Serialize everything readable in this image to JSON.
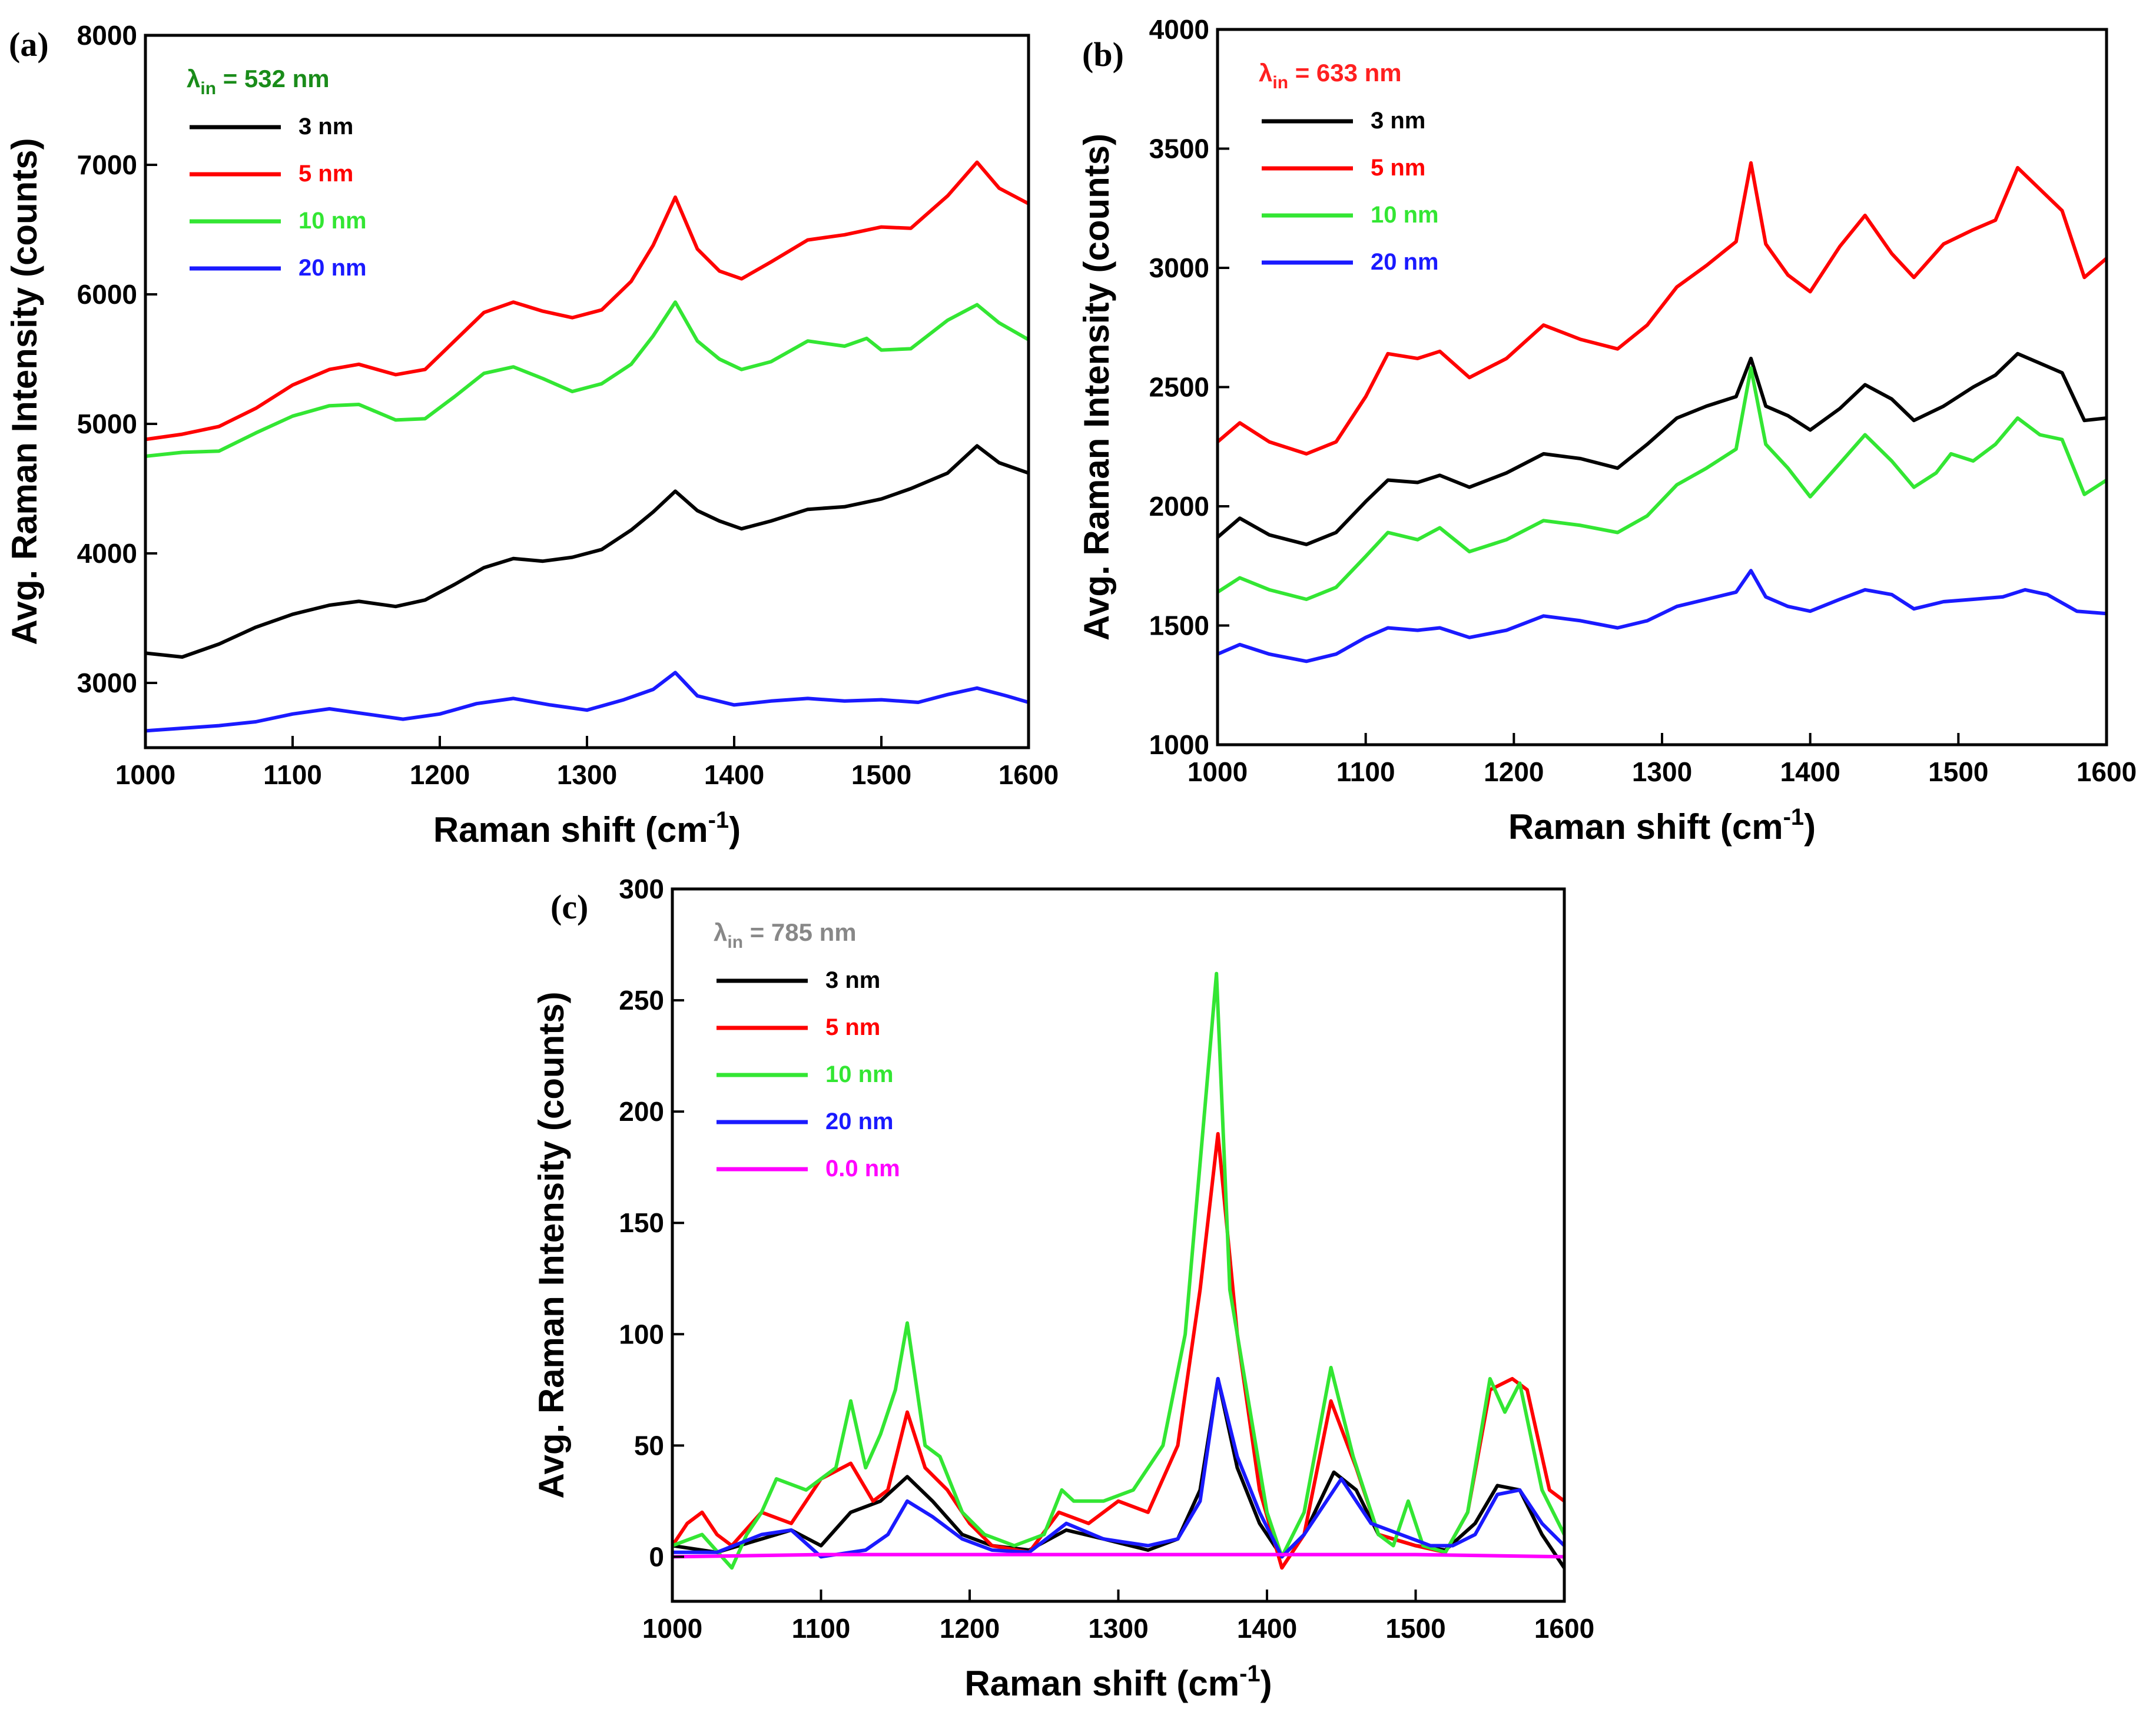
{
  "chart_data": [
    {
      "type": "line",
      "panel_label": "(a)",
      "annotation": {
        "symbol": "λ",
        "sub": "in",
        "text": " = 532 nm",
        "color": "#1a8c1a"
      },
      "xlabel": "Raman shift (cm",
      "xlabel_sup": "-1",
      "xlabel_end": ")",
      "ylabel": "Avg. Raman Intensity (counts)",
      "xlim": [
        1000,
        1600
      ],
      "ylim": [
        2500,
        8000
      ],
      "xticks": [
        "1000",
        "1100",
        "1200",
        "1300",
        "1400",
        "1500",
        "1600"
      ],
      "yticks": [
        "3000",
        "4000",
        "5000",
        "6000",
        "7000",
        "8000"
      ],
      "series": [
        {
          "name": "3 nm",
          "color": "#000000",
          "x": [
            1000,
            1025,
            1050,
            1075,
            1100,
            1125,
            1145,
            1170,
            1190,
            1210,
            1230,
            1250,
            1270,
            1290,
            1310,
            1330,
            1345,
            1360,
            1375,
            1390,
            1405,
            1425,
            1450,
            1475,
            1500,
            1520,
            1545,
            1565,
            1580,
            1600
          ],
          "y": [
            3230,
            3200,
            3300,
            3430,
            3530,
            3600,
            3630,
            3590,
            3640,
            3760,
            3890,
            3960,
            3940,
            3970,
            4030,
            4180,
            4320,
            4480,
            4330,
            4250,
            4190,
            4250,
            4340,
            4360,
            4420,
            4500,
            4620,
            4830,
            4700,
            4620
          ]
        },
        {
          "name": "5 nm",
          "color": "#ff0000",
          "x": [
            1000,
            1025,
            1050,
            1075,
            1100,
            1125,
            1145,
            1170,
            1190,
            1210,
            1230,
            1250,
            1270,
            1290,
            1310,
            1330,
            1345,
            1360,
            1375,
            1390,
            1405,
            1425,
            1450,
            1475,
            1500,
            1520,
            1545,
            1565,
            1580,
            1600
          ],
          "y": [
            4880,
            4920,
            4980,
            5120,
            5300,
            5420,
            5460,
            5380,
            5420,
            5640,
            5860,
            5940,
            5870,
            5820,
            5880,
            6100,
            6380,
            6750,
            6350,
            6180,
            6120,
            6250,
            6420,
            6460,
            6520,
            6510,
            6760,
            7020,
            6820,
            6700
          ]
        },
        {
          "name": "10 nm",
          "color": "#33e633",
          "x": [
            1000,
            1025,
            1050,
            1075,
            1100,
            1125,
            1145,
            1170,
            1190,
            1210,
            1230,
            1250,
            1270,
            1290,
            1310,
            1330,
            1345,
            1360,
            1375,
            1390,
            1405,
            1425,
            1450,
            1475,
            1490,
            1500,
            1520,
            1545,
            1565,
            1580,
            1600
          ],
          "y": [
            4750,
            4780,
            4790,
            4930,
            5060,
            5140,
            5150,
            5030,
            5040,
            5210,
            5390,
            5440,
            5350,
            5250,
            5310,
            5460,
            5680,
            5940,
            5640,
            5500,
            5420,
            5480,
            5640,
            5600,
            5660,
            5570,
            5580,
            5800,
            5920,
            5780,
            5650
          ]
        },
        {
          "name": "20 nm",
          "color": "#1a1aff",
          "x": [
            1000,
            1025,
            1050,
            1075,
            1100,
            1125,
            1150,
            1175,
            1200,
            1225,
            1250,
            1275,
            1300,
            1325,
            1345,
            1360,
            1375,
            1400,
            1425,
            1450,
            1475,
            1500,
            1525,
            1545,
            1565,
            1585,
            1600
          ],
          "y": [
            2630,
            2650,
            2670,
            2700,
            2760,
            2800,
            2760,
            2720,
            2760,
            2840,
            2880,
            2830,
            2790,
            2870,
            2950,
            3080,
            2900,
            2830,
            2860,
            2880,
            2860,
            2870,
            2850,
            2910,
            2960,
            2900,
            2850
          ]
        }
      ]
    },
    {
      "type": "line",
      "panel_label": "(b)",
      "annotation": {
        "symbol": "λ",
        "sub": "in",
        "text": " = 633 nm",
        "color": "#ff2020"
      },
      "xlabel": "Raman shift (cm",
      "xlabel_sup": "-1",
      "xlabel_end": ")",
      "ylabel": "Avg. Raman Intensity (counts)",
      "xlim": [
        1000,
        1600
      ],
      "ylim": [
        1000,
        4000
      ],
      "xticks": [
        "1000",
        "1100",
        "1200",
        "1300",
        "1400",
        "1500",
        "1600"
      ],
      "yticks": [
        "1000",
        "1500",
        "2000",
        "2500",
        "3000",
        "3500",
        "4000"
      ],
      "series": [
        {
          "name": "3 nm",
          "color": "#000000",
          "x": [
            1000,
            1015,
            1035,
            1060,
            1080,
            1100,
            1115,
            1135,
            1150,
            1170,
            1195,
            1220,
            1245,
            1270,
            1290,
            1310,
            1330,
            1350,
            1360,
            1370,
            1385,
            1400,
            1420,
            1437,
            1455,
            1470,
            1490,
            1510,
            1525,
            1540,
            1555,
            1570,
            1585,
            1600
          ],
          "y": [
            1870,
            1950,
            1880,
            1840,
            1890,
            2020,
            2110,
            2100,
            2130,
            2080,
            2140,
            2220,
            2200,
            2160,
            2260,
            2370,
            2420,
            2460,
            2620,
            2420,
            2380,
            2320,
            2410,
            2510,
            2450,
            2360,
            2420,
            2500,
            2550,
            2640,
            2600,
            2560,
            2360,
            2370
          ]
        },
        {
          "name": "5 nm",
          "color": "#ff0000",
          "x": [
            1000,
            1015,
            1035,
            1060,
            1080,
            1100,
            1115,
            1135,
            1150,
            1170,
            1195,
            1220,
            1245,
            1270,
            1290,
            1310,
            1330,
            1350,
            1360,
            1370,
            1385,
            1400,
            1420,
            1437,
            1455,
            1470,
            1490,
            1510,
            1525,
            1540,
            1555,
            1570,
            1585,
            1600
          ],
          "y": [
            2270,
            2350,
            2270,
            2220,
            2270,
            2460,
            2640,
            2620,
            2650,
            2540,
            2620,
            2760,
            2700,
            2660,
            2760,
            2920,
            3010,
            3110,
            3440,
            3100,
            2970,
            2900,
            3090,
            3220,
            3060,
            2960,
            3100,
            3160,
            3200,
            3420,
            3330,
            3240,
            2960,
            3040
          ]
        },
        {
          "name": "10 nm",
          "color": "#33e633",
          "x": [
            1000,
            1015,
            1035,
            1060,
            1080,
            1100,
            1115,
            1135,
            1150,
            1170,
            1195,
            1220,
            1245,
            1270,
            1290,
            1310,
            1330,
            1350,
            1360,
            1370,
            1385,
            1400,
            1420,
            1437,
            1455,
            1470,
            1485,
            1495,
            1510,
            1525,
            1540,
            1555,
            1570,
            1585,
            1600
          ],
          "y": [
            1640,
            1700,
            1650,
            1610,
            1660,
            1790,
            1890,
            1860,
            1910,
            1810,
            1860,
            1940,
            1920,
            1890,
            1960,
            2090,
            2160,
            2240,
            2580,
            2260,
            2160,
            2040,
            2180,
            2300,
            2190,
            2080,
            2140,
            2220,
            2190,
            2260,
            2370,
            2300,
            2280,
            2050,
            2110
          ]
        },
        {
          "name": "20 nm",
          "color": "#1a1aff",
          "x": [
            1000,
            1015,
            1035,
            1060,
            1080,
            1100,
            1115,
            1135,
            1150,
            1170,
            1195,
            1220,
            1245,
            1270,
            1290,
            1310,
            1330,
            1350,
            1360,
            1370,
            1385,
            1400,
            1420,
            1437,
            1455,
            1470,
            1490,
            1510,
            1530,
            1545,
            1560,
            1580,
            1600
          ],
          "y": [
            1380,
            1420,
            1380,
            1350,
            1380,
            1450,
            1490,
            1480,
            1490,
            1450,
            1480,
            1540,
            1520,
            1490,
            1520,
            1580,
            1610,
            1640,
            1730,
            1620,
            1580,
            1560,
            1610,
            1650,
            1630,
            1570,
            1600,
            1610,
            1620,
            1650,
            1630,
            1560,
            1550
          ]
        }
      ]
    },
    {
      "type": "line",
      "panel_label": "(c)",
      "annotation": {
        "symbol": "λ",
        "sub": "in",
        "text": " = 785 nm",
        "color": "#888888"
      },
      "xlabel": "Raman shift (cm",
      "xlabel_sup": "-1",
      "xlabel_end": ")",
      "ylabel": "Avg. Raman Intensity (counts)",
      "xlim": [
        1000,
        1600
      ],
      "ylim": [
        -20,
        300
      ],
      "xticks": [
        "1000",
        "1100",
        "1200",
        "1300",
        "1400",
        "1500",
        "1600"
      ],
      "yticks": [
        "0",
        "50",
        "100",
        "150",
        "200",
        "250",
        "300"
      ],
      "series": [
        {
          "name": "3 nm",
          "color": "#000000",
          "x": [
            1000,
            1030,
            1060,
            1080,
            1100,
            1120,
            1140,
            1158,
            1175,
            1195,
            1215,
            1240,
            1265,
            1290,
            1320,
            1340,
            1355,
            1367,
            1380,
            1395,
            1410,
            1425,
            1445,
            1460,
            1475,
            1500,
            1520,
            1540,
            1555,
            1570,
            1585,
            1600
          ],
          "y": [
            5,
            2,
            8,
            12,
            5,
            20,
            25,
            36,
            25,
            10,
            5,
            3,
            12,
            8,
            3,
            8,
            30,
            80,
            40,
            15,
            0,
            10,
            38,
            30,
            10,
            5,
            3,
            15,
            32,
            30,
            10,
            -5
          ]
        },
        {
          "name": "5 nm",
          "color": "#ff0000",
          "x": [
            1000,
            1010,
            1020,
            1030,
            1040,
            1060,
            1080,
            1100,
            1120,
            1135,
            1145,
            1158,
            1170,
            1185,
            1200,
            1215,
            1240,
            1260,
            1280,
            1300,
            1320,
            1340,
            1355,
            1367,
            1380,
            1395,
            1410,
            1425,
            1443,
            1460,
            1475,
            1500,
            1520,
            1535,
            1550,
            1565,
            1575,
            1590,
            1600
          ],
          "y": [
            5,
            15,
            20,
            10,
            5,
            20,
            15,
            35,
            42,
            25,
            30,
            65,
            40,
            30,
            15,
            5,
            2,
            20,
            15,
            25,
            20,
            50,
            120,
            190,
            100,
            30,
            -5,
            10,
            70,
            40,
            10,
            5,
            2,
            20,
            75,
            80,
            75,
            30,
            25
          ]
        },
        {
          "name": "10 nm",
          "color": "#33e633",
          "x": [
            1000,
            1020,
            1040,
            1050,
            1060,
            1070,
            1090,
            1110,
            1120,
            1130,
            1140,
            1150,
            1158,
            1170,
            1180,
            1195,
            1210,
            1230,
            1250,
            1262,
            1270,
            1290,
            1310,
            1330,
            1345,
            1358,
            1366,
            1375,
            1385,
            1400,
            1410,
            1425,
            1443,
            1458,
            1475,
            1485,
            1495,
            1505,
            1520,
            1535,
            1550,
            1560,
            1570,
            1585,
            1600
          ],
          "y": [
            5,
            10,
            -5,
            10,
            20,
            35,
            30,
            40,
            70,
            40,
            55,
            75,
            105,
            50,
            45,
            20,
            10,
            5,
            10,
            30,
            25,
            25,
            30,
            50,
            100,
            200,
            262,
            120,
            80,
            20,
            0,
            20,
            85,
            45,
            10,
            5,
            25,
            5,
            2,
            20,
            80,
            65,
            78,
            30,
            10
          ]
        },
        {
          "name": "20 nm",
          "color": "#1a1aff",
          "x": [
            1000,
            1030,
            1060,
            1080,
            1100,
            1130,
            1145,
            1158,
            1175,
            1195,
            1215,
            1240,
            1265,
            1290,
            1320,
            1340,
            1355,
            1367,
            1380,
            1395,
            1410,
            1425,
            1450,
            1470,
            1490,
            1510,
            1525,
            1540,
            1555,
            1570,
            1585,
            1600
          ],
          "y": [
            2,
            2,
            10,
            12,
            0,
            3,
            10,
            25,
            18,
            8,
            3,
            2,
            15,
            8,
            5,
            8,
            25,
            80,
            45,
            20,
            0,
            10,
            35,
            15,
            10,
            5,
            5,
            10,
            28,
            30,
            15,
            5
          ]
        },
        {
          "name": "0.0 nm",
          "color": "#ff00ff",
          "x": [
            1000,
            1100,
            1200,
            1300,
            1400,
            1500,
            1600
          ],
          "y": [
            0,
            1,
            1,
            1,
            1,
            1,
            0
          ]
        }
      ]
    }
  ]
}
